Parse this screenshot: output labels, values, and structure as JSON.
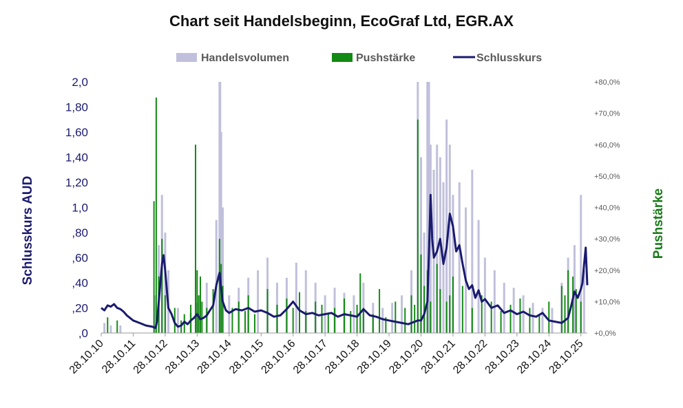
{
  "chart_data": {
    "type": "line",
    "title": "Chart seit Handelsbeginn, EcoGraf Ltd, EGR.AX",
    "legend": {
      "position": "top",
      "entries": [
        {
          "label": "Handelsvolumen",
          "color": "#c0c0dc"
        },
        {
          "label": "Pushstärke",
          "color": "#138a13"
        },
        {
          "label": "Schlusskurs",
          "color": "#1a1a6e"
        }
      ]
    },
    "ylabel": "Schlusskurs AUD",
    "y2label": "Pushstärke",
    "ylim": [
      0,
      2.0
    ],
    "y2lim": [
      0,
      80
    ],
    "yticks": [
      {
        "value": 0,
        "label": ",0"
      },
      {
        "value": 0.2,
        "label": ",20"
      },
      {
        "value": 0.4,
        "label": ",40"
      },
      {
        "value": 0.6,
        "label": ",60"
      },
      {
        "value": 0.8,
        "label": ",80"
      },
      {
        "value": 1.0,
        "label": "1,0"
      },
      {
        "value": 1.2,
        "label": "1,20"
      },
      {
        "value": 1.4,
        "label": "1,40"
      },
      {
        "value": 1.6,
        "label": "1,60"
      },
      {
        "value": 1.8,
        "label": "1,80"
      },
      {
        "value": 2.0,
        "label": "2,0"
      }
    ],
    "y2ticks": [
      {
        "value": 0,
        "label": "+0,0%"
      },
      {
        "value": 10,
        "label": "+10,0%"
      },
      {
        "value": 20,
        "label": "+20,0%"
      },
      {
        "value": 30,
        "label": "+30,0%"
      },
      {
        "value": 40,
        "label": "+40,0%"
      },
      {
        "value": 50,
        "label": "+50,0%"
      },
      {
        "value": 60,
        "label": "+60,0%"
      },
      {
        "value": 70,
        "label": "+70,0%"
      },
      {
        "value": 80,
        "label": "+80,0%"
      }
    ],
    "xlim": [
      2010.0,
      2025.2
    ],
    "xticks": [
      {
        "value": 2010,
        "label": "28.10.10"
      },
      {
        "value": 2011,
        "label": "28.10.11"
      },
      {
        "value": 2012,
        "label": "28.10.12"
      },
      {
        "value": 2013,
        "label": "28.10.13"
      },
      {
        "value": 2014,
        "label": "28.10.14"
      },
      {
        "value": 2015,
        "label": "28.10.15"
      },
      {
        "value": 2016,
        "label": "28.10.16"
      },
      {
        "value": 2017,
        "label": "28.10.17"
      },
      {
        "value": 2018,
        "label": "28.10.18"
      },
      {
        "value": 2019,
        "label": "28.10.19"
      },
      {
        "value": 2020,
        "label": "28.10.20"
      },
      {
        "value": 2021,
        "label": "28.10.21"
      },
      {
        "value": 2022,
        "label": "28.10.22"
      },
      {
        "value": 2023,
        "label": "28.10.23"
      },
      {
        "value": 2024,
        "label": "28.10.24"
      },
      {
        "value": 2025,
        "label": "28.10.25"
      }
    ],
    "series": [
      {
        "name": "Schlusskurs",
        "type": "line",
        "color": "#1a1a6e",
        "x": [
          2010.0,
          2010.1,
          2010.2,
          2010.3,
          2010.4,
          2010.5,
          2010.6,
          2010.7,
          2010.8,
          2010.9,
          2011.0,
          2011.2,
          2011.4,
          2011.6,
          2011.7,
          2011.75,
          2011.8,
          2011.85,
          2011.9,
          2011.95,
          2012.0,
          2012.05,
          2012.1,
          2012.2,
          2012.3,
          2012.4,
          2012.5,
          2012.6,
          2012.7,
          2012.8,
          2012.9,
          2013.0,
          2013.1,
          2013.2,
          2013.3,
          2013.4,
          2013.5,
          2013.6,
          2013.7,
          2013.75,
          2013.8,
          2013.9,
          2014.0,
          2014.2,
          2014.4,
          2014.6,
          2014.8,
          2015.0,
          2015.2,
          2015.4,
          2015.6,
          2015.8,
          2016.0,
          2016.2,
          2016.4,
          2016.6,
          2016.8,
          2017.0,
          2017.2,
          2017.4,
          2017.6,
          2017.8,
          2018.0,
          2018.2,
          2018.4,
          2018.6,
          2018.8,
          2019.0,
          2019.2,
          2019.4,
          2019.6,
          2019.8,
          2019.9,
          2020.0,
          2020.1,
          2020.2,
          2020.25,
          2020.3,
          2020.35,
          2020.4,
          2020.5,
          2020.6,
          2020.7,
          2020.8,
          2020.9,
          2021.0,
          2021.1,
          2021.2,
          2021.3,
          2021.4,
          2021.5,
          2021.6,
          2021.7,
          2021.8,
          2021.9,
          2022.0,
          2022.2,
          2022.4,
          2022.6,
          2022.8,
          2023.0,
          2023.2,
          2023.4,
          2023.6,
          2023.8,
          2024.0,
          2024.2,
          2024.4,
          2024.5,
          2024.6,
          2024.7,
          2024.8,
          2024.9,
          2025.0,
          2025.05,
          2025.1,
          2025.15,
          2025.2
        ],
        "y": [
          0.2,
          0.18,
          0.22,
          0.21,
          0.23,
          0.2,
          0.19,
          0.17,
          0.14,
          0.12,
          0.1,
          0.08,
          0.06,
          0.05,
          0.04,
          0.1,
          0.25,
          0.4,
          0.55,
          0.62,
          0.5,
          0.35,
          0.2,
          0.15,
          0.08,
          0.05,
          0.06,
          0.09,
          0.07,
          0.1,
          0.12,
          0.15,
          0.11,
          0.12,
          0.14,
          0.18,
          0.22,
          0.38,
          0.48,
          0.35,
          0.25,
          0.18,
          0.16,
          0.19,
          0.18,
          0.2,
          0.17,
          0.18,
          0.16,
          0.13,
          0.14,
          0.19,
          0.25,
          0.18,
          0.15,
          0.16,
          0.14,
          0.15,
          0.16,
          0.13,
          0.15,
          0.14,
          0.13,
          0.19,
          0.14,
          0.13,
          0.11,
          0.1,
          0.09,
          0.08,
          0.07,
          0.09,
          0.1,
          0.1,
          0.15,
          0.25,
          0.65,
          1.1,
          0.75,
          0.6,
          0.65,
          0.75,
          0.55,
          0.68,
          0.95,
          0.85,
          0.65,
          0.7,
          0.55,
          0.42,
          0.35,
          0.38,
          0.28,
          0.34,
          0.25,
          0.27,
          0.2,
          0.22,
          0.16,
          0.18,
          0.15,
          0.17,
          0.14,
          0.13,
          0.16,
          0.1,
          0.09,
          0.08,
          0.1,
          0.12,
          0.22,
          0.33,
          0.28,
          0.35,
          0.4,
          0.55,
          0.68,
          0.38
        ]
      },
      {
        "name": "Pushstärke",
        "type": "bar",
        "axis": "y2",
        "color": "#138a13",
        "x": [
          2010.2,
          2010.5,
          2011.65,
          2011.72,
          2011.8,
          2011.9,
          2012.0,
          2012.3,
          2012.5,
          2012.6,
          2012.8,
          2012.95,
          2013.0,
          2013.05,
          2013.1,
          2013.15,
          2013.3,
          2013.5,
          2013.7,
          2013.75,
          2013.8,
          2014.1,
          2014.3,
          2014.5,
          2014.6,
          2014.8,
          2015.2,
          2015.5,
          2015.8,
          2016.0,
          2016.2,
          2016.4,
          2016.7,
          2016.9,
          2017.1,
          2017.3,
          2017.6,
          2017.8,
          2018.0,
          2018.1,
          2018.2,
          2018.5,
          2018.7,
          2018.9,
          2019.2,
          2019.5,
          2019.7,
          2019.8,
          2019.9,
          2020.0,
          2020.1,
          2020.2,
          2020.3,
          2020.5,
          2020.6,
          2020.8,
          2020.9,
          2021.0,
          2021.3,
          2021.6,
          2021.9,
          2022.2,
          2022.5,
          2022.8,
          2023.1,
          2023.4,
          2023.7,
          2024.0,
          2024.4,
          2024.5,
          2024.6,
          2024.75,
          2024.85,
          2025.0
        ],
        "values": [
          5,
          4,
          42,
          75,
          18,
          30,
          12,
          8,
          4,
          6,
          9,
          60,
          20,
          12,
          18,
          10,
          8,
          14,
          30,
          22,
          15,
          8,
          10,
          7,
          12,
          6,
          14,
          9,
          11,
          8,
          13,
          7,
          10,
          9,
          6,
          8,
          11,
          7,
          9,
          19,
          8,
          6,
          14,
          5,
          10,
          8,
          12,
          9,
          68,
          25,
          15,
          20,
          10,
          22,
          14,
          10,
          12,
          18,
          15,
          8,
          12,
          10,
          7,
          9,
          11,
          8,
          6,
          10,
          15,
          12,
          20,
          18,
          14,
          10
        ]
      },
      {
        "name": "Handelsvolumen",
        "type": "bar",
        "axis": "relative",
        "color": "#c0c0dc",
        "x": [
          2010.1,
          2010.3,
          2010.6,
          2011.7,
          2011.8,
          2011.9,
          2012.0,
          2012.1,
          2012.4,
          2012.8,
          2013.0,
          2013.3,
          2013.6,
          2013.7,
          2013.72,
          2013.75,
          2013.8,
          2014.0,
          2014.3,
          2014.6,
          2014.9,
          2015.2,
          2015.5,
          2015.8,
          2016.1,
          2016.4,
          2016.7,
          2017.0,
          2017.3,
          2017.6,
          2017.9,
          2018.2,
          2018.5,
          2018.8,
          2019.1,
          2019.4,
          2019.7,
          2019.9,
          2020.0,
          2020.1,
          2020.2,
          2020.25,
          2020.3,
          2020.4,
          2020.5,
          2020.6,
          2020.7,
          2020.8,
          2020.9,
          2021.0,
          2021.2,
          2021.4,
          2021.6,
          2021.8,
          2022.0,
          2022.3,
          2022.6,
          2022.9,
          2023.2,
          2023.5,
          2023.8,
          2024.1,
          2024.4,
          2024.6,
          2024.8,
          2025.0,
          2025.1
        ],
        "values": [
          0.04,
          0.03,
          0.03,
          0.15,
          0.35,
          0.55,
          0.4,
          0.25,
          0.1,
          0.08,
          0.12,
          0.2,
          0.45,
          1.0,
          1.0,
          0.8,
          0.5,
          0.15,
          0.18,
          0.22,
          0.25,
          0.3,
          0.2,
          0.22,
          0.28,
          0.25,
          0.2,
          0.15,
          0.18,
          0.16,
          0.15,
          0.2,
          0.12,
          0.1,
          0.12,
          0.15,
          0.25,
          1.0,
          0.7,
          0.4,
          1.0,
          1.0,
          0.75,
          0.65,
          0.75,
          0.7,
          0.6,
          0.85,
          0.75,
          0.55,
          0.6,
          0.5,
          0.65,
          0.45,
          0.3,
          0.25,
          0.2,
          0.18,
          0.15,
          0.12,
          0.1,
          0.1,
          0.2,
          0.3,
          0.35,
          0.55,
          0.25
        ]
      }
    ]
  }
}
